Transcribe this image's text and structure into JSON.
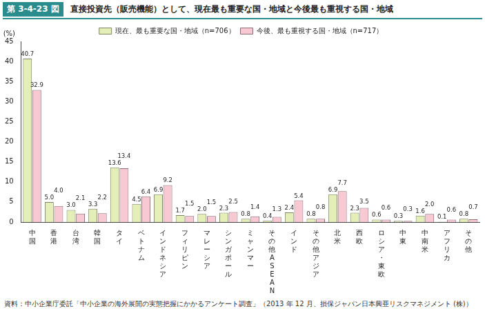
{
  "chart_data": {
    "type": "bar",
    "figure_number": "第 3-4-23 図",
    "title": "直接投資先（販売機能）として、現在最も重要な国・地域と今後最も重視する国・地域",
    "ylabel": "(%)",
    "source": "資料：中小企業庁委託「中小企業の海外展開の実態把握にかかるアンケート調査」（2013 年 12 月、損保ジャパン日本興亜リスクマネジメント (株)）",
    "categories": [
      "中国",
      "香港",
      "台湾",
      "韓国",
      "タイ",
      "ベトナム",
      "インドネシア",
      "フィリピン",
      "マレーシア",
      "シンガポール",
      "ミャンマー",
      "その他ASEAN",
      "インド",
      "その他アジア",
      "北米",
      "西欧",
      "ロシア・東欧",
      "中東",
      "中南米",
      "アフリカ",
      "その他"
    ],
    "series": [
      {
        "name": "現在、最も重要な国・地域（n=706）",
        "color": "#e4efb8",
        "values": [
          40.7,
          5.0,
          3.0,
          3.3,
          13.6,
          4.5,
          6.9,
          1.7,
          2.0,
          2.3,
          0.8,
          0.4,
          2.4,
          0.8,
          6.9,
          2.3,
          0.6,
          0.3,
          1.6,
          0.1,
          0.8
        ],
        "value_labels": [
          "40.7",
          "5.0",
          "3.0",
          "3.3",
          "13.6",
          "4.5",
          "6.9",
          "1.7",
          "2.0",
          "2.3",
          "0.8",
          "0.4",
          "2.4",
          "0.8",
          "6.9",
          "2.3",
          "0.6",
          "0.3",
          "1.6",
          "0.1",
          "0.8"
        ]
      },
      {
        "name": "今後、最も重視する国・地域（n=717）",
        "color": "#f8c8d3",
        "values": [
          32.9,
          4.0,
          2.1,
          2.2,
          13.4,
          6.4,
          9.2,
          1.5,
          1.5,
          2.5,
          1.4,
          1.3,
          5.4,
          0.8,
          7.7,
          3.5,
          0.6,
          0.3,
          2.0,
          0.6,
          0.7
        ],
        "value_labels": [
          "32.9",
          "4.0",
          "2.1",
          "2.2",
          "13.4",
          "6.4",
          "9.2",
          "1.5",
          "1.5",
          "2.5",
          "1.4",
          "1.3",
          "5.4",
          "0.8",
          "7.7",
          "3.5",
          "0.6",
          "0.3",
          "2.0",
          "0.6",
          "0.7"
        ]
      }
    ],
    "ylim": [
      0,
      45
    ],
    "yticks": [
      0,
      5,
      10,
      15,
      20,
      25,
      30,
      35,
      40,
      45
    ],
    "grid": false,
    "legend": "top",
    "data_labels": true
  }
}
